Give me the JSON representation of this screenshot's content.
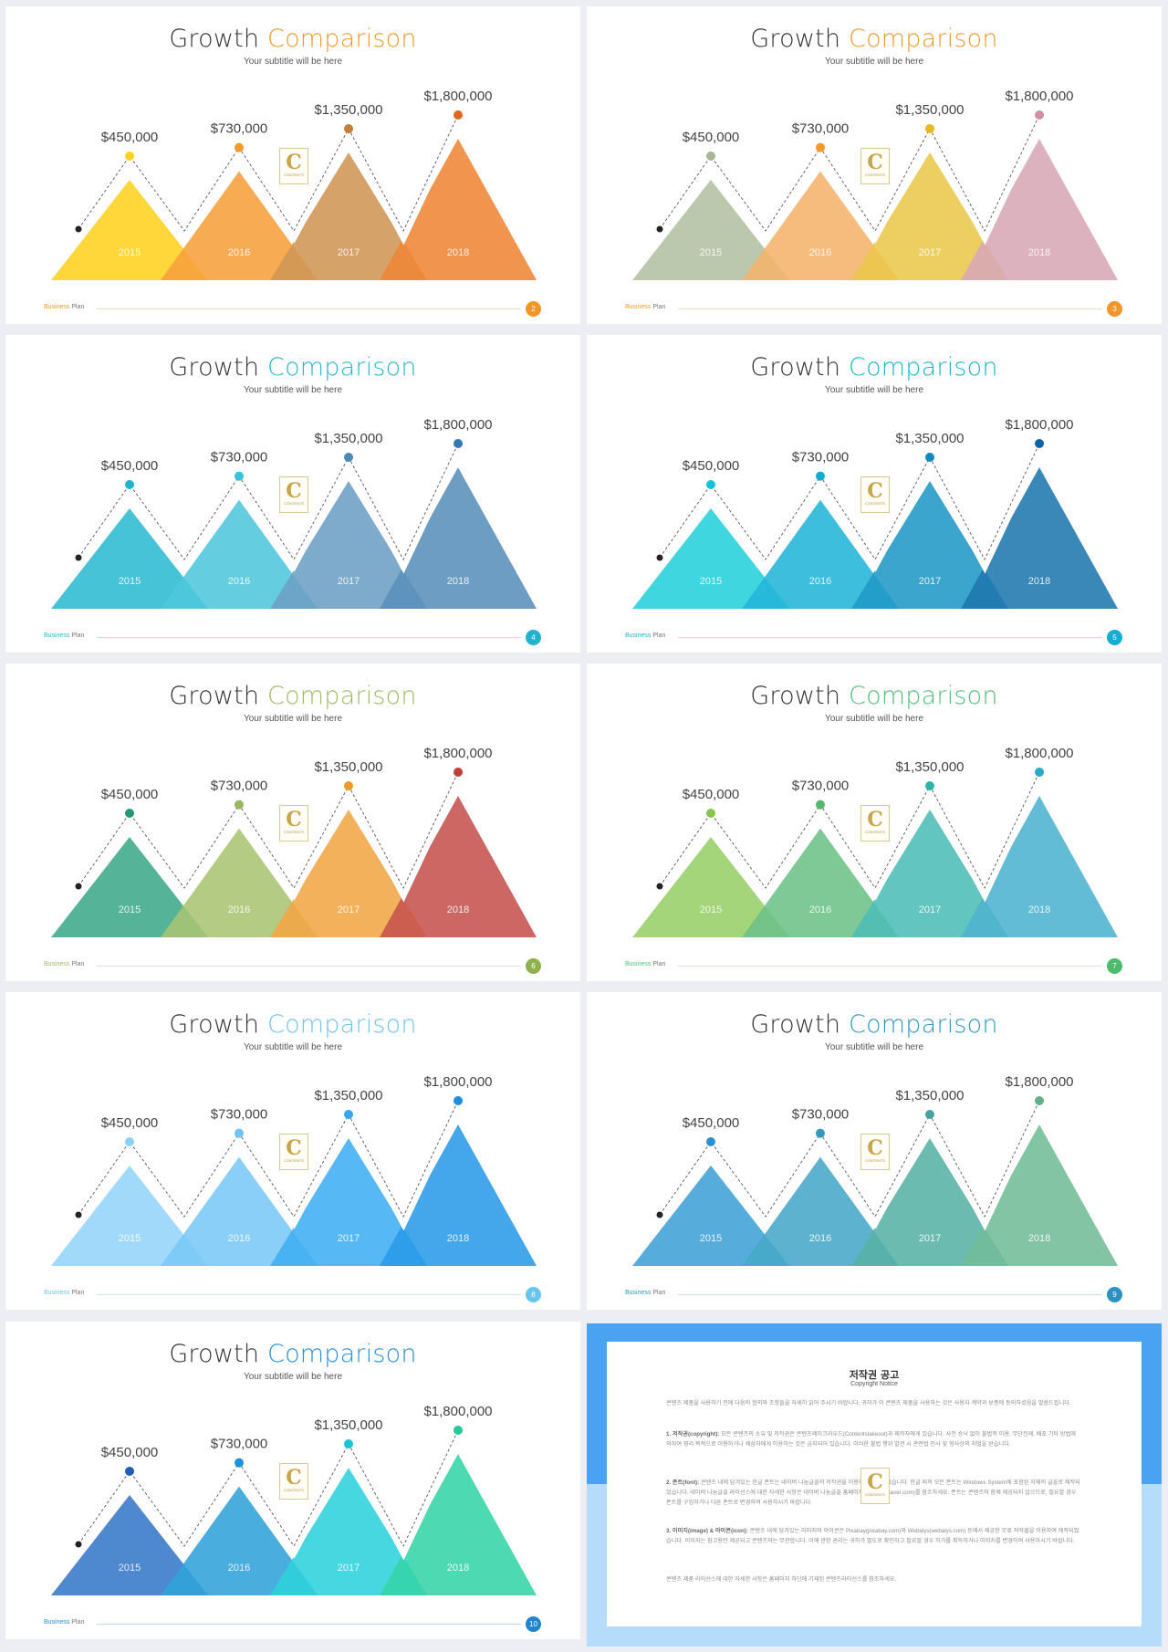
{
  "chart_data": [
    {
      "type": "area",
      "title": "Growth Comparison",
      "categories": [
        "2015",
        "2016",
        "2017",
        "2018"
      ],
      "values": [
        450000,
        730000,
        1350000,
        1800000
      ],
      "value_labels": [
        "$450,000",
        "$730,000",
        "$1,350,000",
        "$1,800,000"
      ],
      "accent": "#ef9a2e",
      "peak_colors": [
        "#ffd21f",
        "#f6a13b",
        "#cf9654",
        "#ee8535"
      ],
      "dot_colors": [
        "#ffd21f",
        "#f19a2a",
        "#c47f32",
        "#e36720"
      ]
    },
    {
      "type": "area",
      "title": "Growth Comparison",
      "categories": [
        "2015",
        "2016",
        "2017",
        "2018"
      ],
      "values": [
        450000,
        730000,
        1350000,
        1800000
      ],
      "value_labels": [
        "$450,000",
        "$730,000",
        "$1,350,000",
        "$1,800,000"
      ],
      "accent": "#ef9a2e",
      "peak_colors": [
        "#b2c0a3",
        "#f4b36b",
        "#eac74a",
        "#d8a7b6"
      ],
      "dot_colors": [
        "#a9b595",
        "#f19a2a",
        "#eab921",
        "#d08fa5"
      ]
    },
    {
      "type": "area",
      "title": "Growth Comparison",
      "categories": [
        "2015",
        "2016",
        "2017",
        "2018"
      ],
      "values": [
        450000,
        730000,
        1350000,
        1800000
      ],
      "value_labels": [
        "$450,000",
        "$730,000",
        "$1,350,000",
        "$1,800,000"
      ],
      "accent": "#29b6d2",
      "peak_colors": [
        "#2ebbd2",
        "#4ec7dc",
        "#6c9fc4",
        "#5a8fbb"
      ],
      "dot_colors": [
        "#20b4cf",
        "#39c2da",
        "#4f89b8",
        "#3678b0"
      ]
    },
    {
      "type": "area",
      "title": "Growth Comparison",
      "categories": [
        "2015",
        "2016",
        "2017",
        "2018"
      ],
      "values": [
        450000,
        730000,
        1350000,
        1800000
      ],
      "value_labels": [
        "$450,000",
        "$730,000",
        "$1,350,000",
        "$1,800,000"
      ],
      "accent": "#1ab3d3",
      "peak_colors": [
        "#25d0dc",
        "#22b5d7",
        "#2099c7",
        "#1e78ad"
      ],
      "dot_colors": [
        "#13c4d6",
        "#12abd1",
        "#1289bf",
        "#0f63a4"
      ]
    },
    {
      "type": "area",
      "title": "Growth Comparison",
      "categories": [
        "2015",
        "2016",
        "2017",
        "2018"
      ],
      "values": [
        450000,
        730000,
        1350000,
        1800000
      ],
      "value_labels": [
        "$450,000",
        "$730,000",
        "$1,350,000",
        "$1,800,000"
      ],
      "accent": "#9ebc5f",
      "peak_colors": [
        "#3da98a",
        "#a8c472",
        "#f3a646",
        "#c6524e"
      ],
      "dot_colors": [
        "#23997a",
        "#96b75e",
        "#ee9a2b",
        "#bd3f38"
      ]
    },
    {
      "type": "area",
      "title": "Growth Comparison",
      "categories": [
        "2015",
        "2016",
        "2017",
        "2018"
      ],
      "values": [
        450000,
        730000,
        1350000,
        1800000
      ],
      "value_labels": [
        "$450,000",
        "$730,000",
        "$1,350,000",
        "$1,800,000"
      ],
      "accent": "#4fbf7a",
      "peak_colors": [
        "#97cf69",
        "#6cc187",
        "#4cbdb6",
        "#4db3cf"
      ],
      "dot_colors": [
        "#86c64f",
        "#52b86f",
        "#2fb4a9",
        "#2aa9c8"
      ]
    },
    {
      "type": "area",
      "title": "Growth Comparison",
      "categories": [
        "2015",
        "2016",
        "2017",
        "2018"
      ],
      "values": [
        450000,
        730000,
        1350000,
        1800000
      ],
      "value_labels": [
        "$450,000",
        "$730,000",
        "$1,350,000",
        "$1,800,000"
      ],
      "accent": "#6ec5ee",
      "peak_colors": [
        "#93d4f9",
        "#79c8f6",
        "#3faef2",
        "#2a9ae8"
      ],
      "dot_colors": [
        "#8ad0f7",
        "#6ec4f3",
        "#31a8ef",
        "#1c8fe0"
      ]
    },
    {
      "type": "area",
      "title": "Growth Comparison",
      "categories": [
        "2015",
        "2016",
        "2017",
        "2018"
      ],
      "values": [
        450000,
        730000,
        1350000,
        1800000
      ],
      "value_labels": [
        "$450,000",
        "$730,000",
        "$1,350,000",
        "$1,800,000"
      ],
      "accent": "#2c9ac8",
      "peak_colors": [
        "#3fa0d5",
        "#47a8c8",
        "#58b2a6",
        "#72bc98"
      ],
      "dot_colors": [
        "#2a92d0",
        "#3499bf",
        "#46a39c",
        "#5fb18b"
      ]
    },
    {
      "type": "area",
      "title": "Growth Comparison",
      "categories": [
        "2015",
        "2016",
        "2017",
        "2018"
      ],
      "values": [
        450000,
        730000,
        1350000,
        1800000
      ],
      "value_labels": [
        "$450,000",
        "$730,000",
        "$1,350,000",
        "$1,800,000"
      ],
      "accent": "#2a8fd6",
      "peak_colors": [
        "#3578c8",
        "#30a3d9",
        "#2ed1dc",
        "#34d4a7"
      ],
      "dot_colors": [
        "#1f5fb3",
        "#1d93d2",
        "#19c5d3",
        "#24c99a"
      ]
    }
  ],
  "slides": [
    {
      "title_a": "Growth",
      "title_b": "Comparison",
      "subtitle": "Your subtitle will be here",
      "footer_a": "Business",
      "footer_b": "Plan",
      "page": "2",
      "accent": "#ef9a2e",
      "badge": "#f0962a",
      "line": "#e7dcc0"
    },
    {
      "title_a": "Growth",
      "title_b": "Comparison",
      "subtitle": "Your subtitle will be here",
      "footer_a": "Business",
      "footer_b": "Plan",
      "page": "3",
      "accent": "#ef9a2e",
      "badge": "#f0962a",
      "line": "#e7dcc0"
    },
    {
      "title_a": "Growth",
      "title_b": "Comparison",
      "subtitle": "Your subtitle will be here",
      "footer_a": "Business",
      "footer_b": "Plan",
      "page": "4",
      "accent": "#29b6d2",
      "badge": "#22b2d0",
      "line": "#b9e3ee"
    },
    {
      "title_a": "Growth",
      "title_b": "Comparison",
      "subtitle": "Your subtitle will be here",
      "footer_a": "Business",
      "footer_b": "Plan",
      "page": "5",
      "accent": "#1ab3d3",
      "badge": "#14aed4",
      "line": "#b9e3ee"
    },
    {
      "title_a": "Growth",
      "title_b": "Comparison",
      "subtitle": "Your subtitle will be here",
      "footer_a": "Business",
      "footer_b": "Plan",
      "page": "6",
      "accent": "#9ebc5f",
      "badge": "#8fb24e",
      "line": "#dfe3cf"
    },
    {
      "title_a": "Growth",
      "title_b": "Comparison",
      "subtitle": "Your subtitle will be here",
      "footer_a": "Business",
      "footer_b": "Plan",
      "page": "7",
      "accent": "#4fbf7a",
      "badge": "#4cbb6b",
      "line": "#cfe6d6"
    },
    {
      "title_a": "Growth",
      "title_b": "Comparison",
      "subtitle": "Your subtitle will be here",
      "footer_a": "Business",
      "footer_b": "Plan",
      "page": "8",
      "accent": "#6ec5ee",
      "badge": "#6ac4f0",
      "line": "#c8e7f6"
    },
    {
      "title_a": "Growth",
      "title_b": "Comparison",
      "subtitle": "Your subtitle will be here",
      "footer_a": "Business",
      "footer_b": "Plan",
      "page": "9",
      "accent": "#2c9ac8",
      "badge": "#2c92c2",
      "line": "#c3e0ec"
    },
    {
      "title_a": "Growth",
      "title_b": "Comparison",
      "subtitle": "Your subtitle will be here",
      "footer_a": "Business",
      "footer_b": "Plan",
      "page": "10",
      "accent": "#2a8fd6",
      "badge": "#1e86cf",
      "line": "#bcdcf0"
    }
  ],
  "logo": {
    "letter": "C",
    "label": "CONTENTS"
  },
  "notice": {
    "title": "저작권 공고",
    "subtitle": "Copyright Notice",
    "intro": "콘텐츠 제품을 사용하기 전에 다음의 협의와 조항들을 자세히 읽어 주시기 바랍니다. 귀하가 이 콘텐츠 제품을 사용하는 것은 사용자 계약과 보증에 동의하셨음을 말씀드립니다.",
    "p1_head": "1. 저작권(copyright):",
    "p1_body": "모든 콘텐츠의 소유 및 저작권은 콘텐츠레이크라우드(Contentslakeout)과 제작자에게 있습니다. 사전 승낙 없이 불법적 이용, 무단전재, 배포 기타 방법에 의하여 영리 목적으로 이용하거나 제삼자에게 이용하는 것은 금지되어 있습니다. 이러한 불법 행위 발견 시 관련법 민사 및 형사상의 처벌을 받습니다.",
    "p2_head": "2. 폰트(font):",
    "p2_body": "콘텐츠 내에 담겨있는 한글 폰트는 네이버 나눔글꼴의 저작권을 이용하여 제작되었습니다. 한글 외의 모든 폰트는 Windows System에 포함된 자체의 글꼴로 제작되었습니다. 네이버 나눔글꼴 라이선스에 대한 자세한 사항은 네이버 나눔글꼴 홈페이지(hangeul.naver.com)를 참조하세요. 폰트는 콘텐츠와 함께 제공되지 않으므로, 필요할 경우 폰트를 구입하거나 다른 폰트로 변경하여 사용하시기 바랍니다.",
    "p3_head": "3. 이미지(image) & 아이콘(icon):",
    "p3_body": "콘텐츠 내에 담겨있는 이미지와 아이콘은 Pixabay(pixabay.com)와 Webalys(webalys.com) 등에서 제공한 무료 저작물을 이용하여 제작되었습니다. 이미지는 참고용만 제공되고 콘텐츠와는 무관합니다. 이에 관한 권리는 귀하가 별도로 확인하고 필요할 경우 허가를 취득하거나 이미지를 변경하여 사용하시기 바랍니다.",
    "outro": "콘텐츠 제품 라이선스에 대한 자세한 사항은 홈페이지 하단에 기재된 콘텐츠라이선스를 참조하세요."
  }
}
